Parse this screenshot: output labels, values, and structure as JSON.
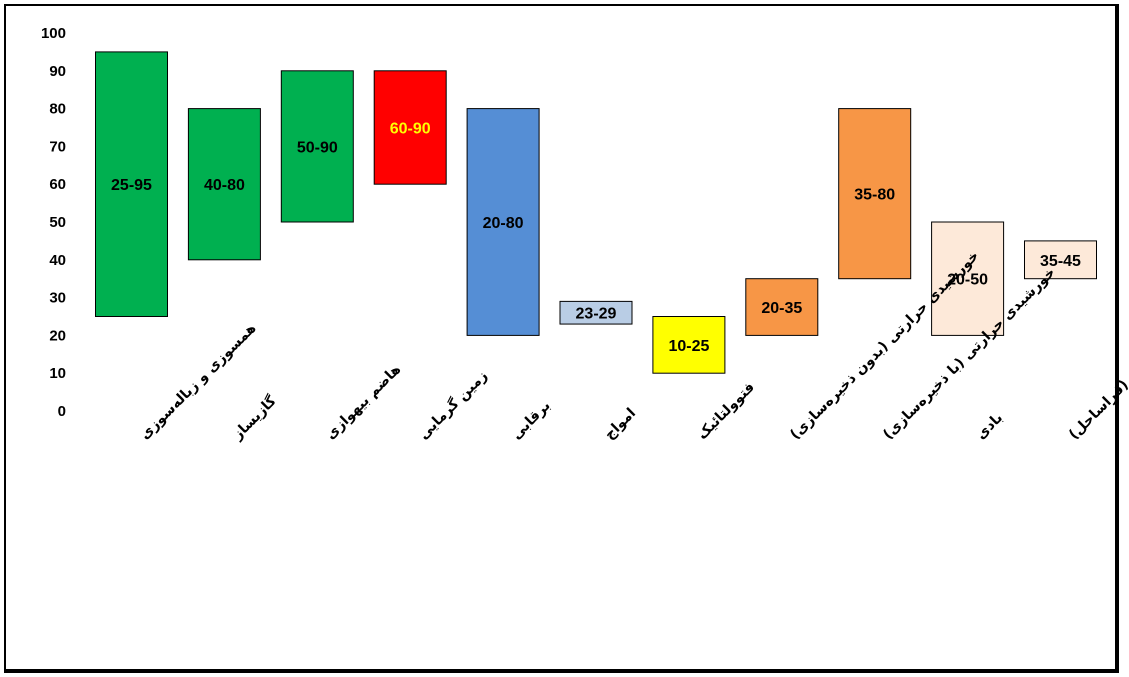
{
  "chart_data": {
    "type": "bar",
    "subtype": "floating-range",
    "title": "",
    "xlabel": "",
    "ylabel": "",
    "ylim": [
      0,
      100
    ],
    "yticks": [
      0,
      10,
      20,
      30,
      40,
      50,
      60,
      70,
      80,
      90,
      100
    ],
    "grid": false,
    "legend": "none",
    "categories": [
      "همسوزی و زباله‌سوزی",
      "گازیساز",
      "هاضم بیهوازی",
      "زمین گرمایی",
      "برقابی",
      "امواج",
      "فتوولتائیک",
      "خورشیدی حرارتی (بدون ذخیره‌سازی)",
      "خورشیدی حرارتی (با ذخیره‌سازی)",
      "بادی",
      "بادی (فراساحل)"
    ],
    "ranges": [
      {
        "low": 25,
        "high": 95,
        "label": "25-95",
        "color": "#00b050",
        "label_color": "#000000"
      },
      {
        "low": 40,
        "high": 80,
        "label": "40-80",
        "color": "#00b050",
        "label_color": "#000000"
      },
      {
        "low": 50,
        "high": 90,
        "label": "50-90",
        "color": "#00b050",
        "label_color": "#000000"
      },
      {
        "low": 60,
        "high": 90,
        "label": "60-90",
        "color": "#ff0000",
        "label_color": "#ffff00"
      },
      {
        "low": 20,
        "high": 80,
        "label": "20-80",
        "color": "#558ed5",
        "label_color": "#000000"
      },
      {
        "low": 23,
        "high": 29,
        "label": "23-29",
        "color": "#b9cde5",
        "label_color": "#000000"
      },
      {
        "low": 10,
        "high": 25,
        "label": "10-25",
        "color": "#ffff00",
        "label_color": "#000000"
      },
      {
        "low": 20,
        "high": 35,
        "label": "20-35",
        "color": "#f79646",
        "label_color": "#000000"
      },
      {
        "low": 35,
        "high": 80,
        "label": "35-80",
        "color": "#f79646",
        "label_color": "#000000"
      },
      {
        "low": 20,
        "high": 50,
        "label": "20-50",
        "color": "#fde9d9",
        "label_color": "#000000"
      },
      {
        "low": 35,
        "high": 45,
        "label": "35-45",
        "color": "#fde9d9",
        "label_color": "#000000"
      }
    ]
  }
}
